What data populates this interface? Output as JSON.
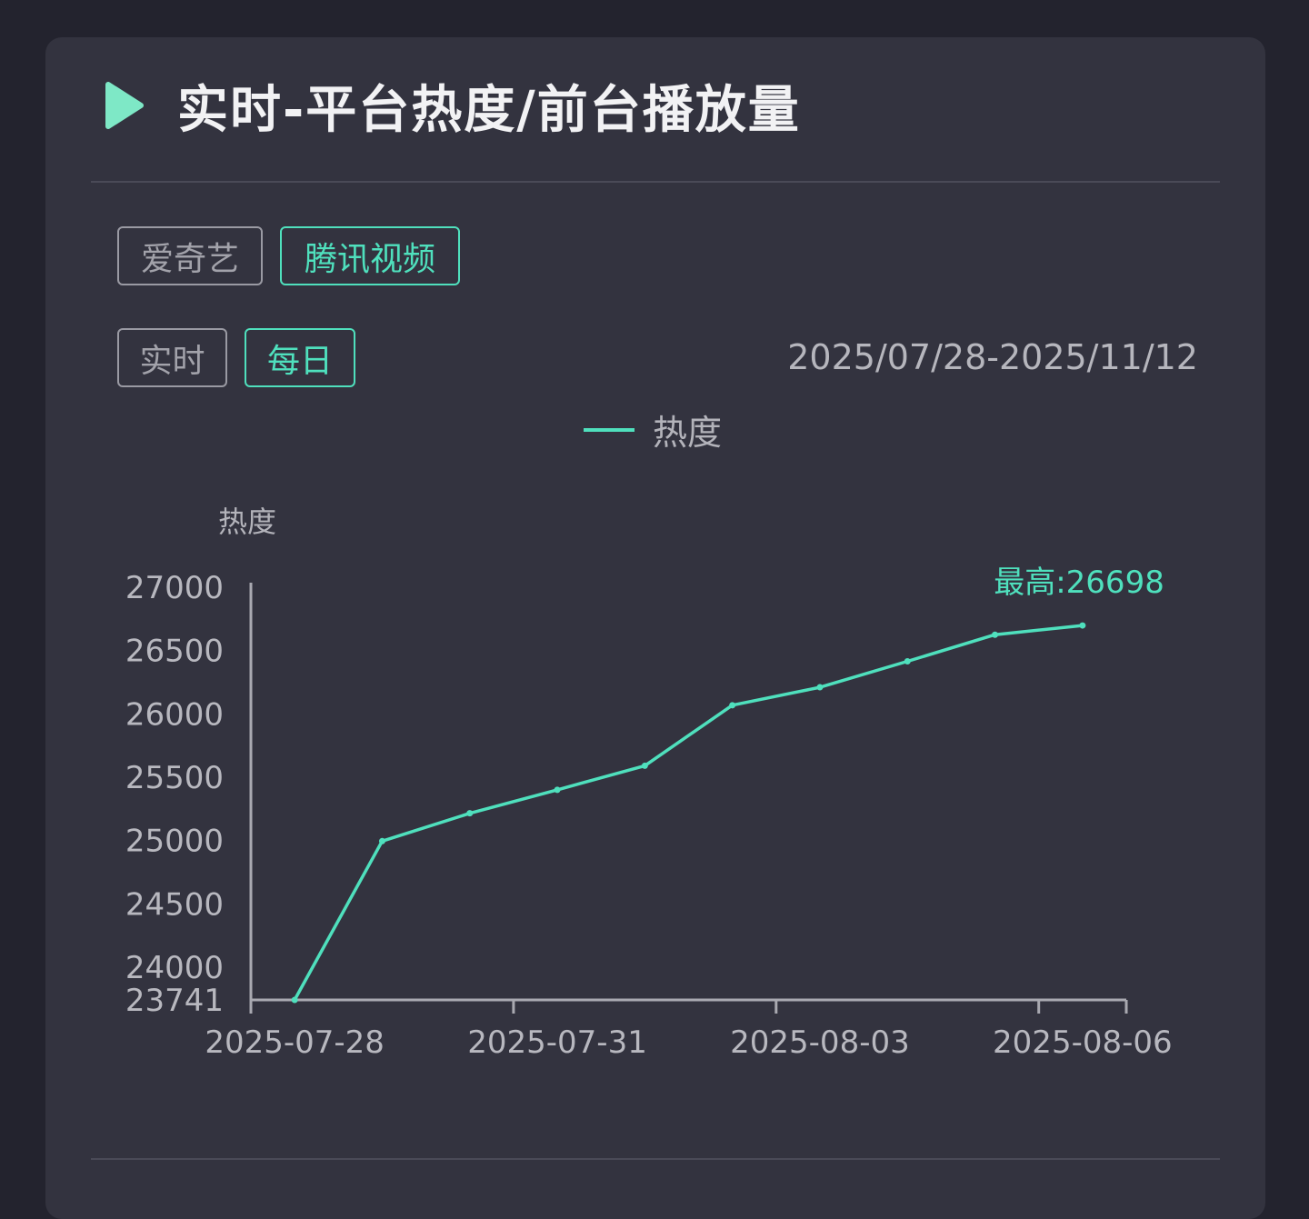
{
  "header": {
    "title": "实时-平台热度/前台播放量"
  },
  "platform_tabs": [
    {
      "label": "爱奇艺",
      "active": false
    },
    {
      "label": "腾讯视频",
      "active": true
    }
  ],
  "mode_tabs": [
    {
      "label": "实时",
      "active": false
    },
    {
      "label": "每日",
      "active": true
    }
  ],
  "date_range": "2025/07/28-2025/11/12",
  "colors": {
    "accent": "#4fe0bd",
    "card": "#33333f",
    "background": "#23232e",
    "axis": "#a9a9b1",
    "text_muted": "#b3b3ba"
  },
  "chart_data": {
    "type": "line",
    "legend": {
      "position": "top-center"
    },
    "ylabel": "热度",
    "ylim": [
      23741,
      27000
    ],
    "y_ticks": [
      "23741",
      "24000",
      "24500",
      "25000",
      "25500",
      "26000",
      "26500",
      "27000"
    ],
    "x_ticks": [
      "2025-07-28",
      "2025-07-31",
      "2025-08-03",
      "2025-08-06"
    ],
    "x": [
      "2025-07-28",
      "2025-07-29",
      "2025-07-30",
      "2025-07-31",
      "2025-08-01",
      "2025-08-02",
      "2025-08-03",
      "2025-08-04",
      "2025-08-05",
      "2025-08-06"
    ],
    "series": [
      {
        "name": "热度",
        "values": [
          23741,
          24995,
          25215,
          25400,
          25590,
          26068,
          26210,
          26415,
          26625,
          26698
        ]
      }
    ],
    "annotation": {
      "text": "最高:26698",
      "value": 26698
    },
    "grid": false
  }
}
